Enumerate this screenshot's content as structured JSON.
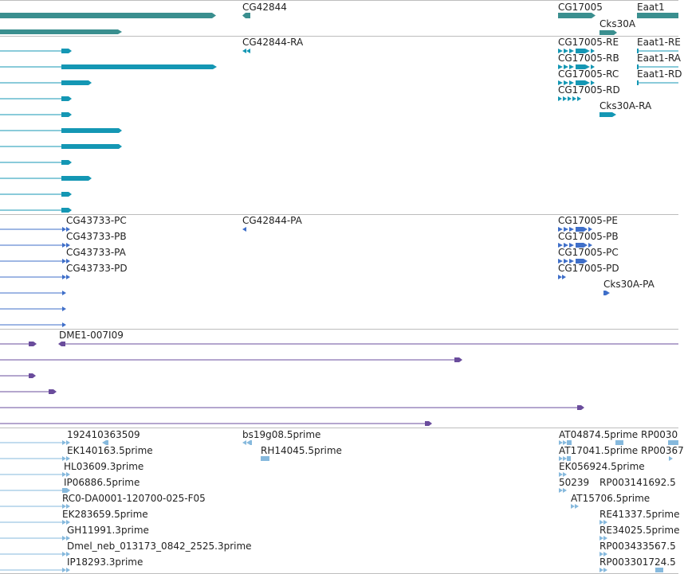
{
  "colors": {
    "gene": "#3a8f8f",
    "mrna": "#1497b4",
    "cds": "#3f6fc9",
    "clone": "#6a4c9c",
    "est": "#86b9dd",
    "separator": "#bdbdbd",
    "label": "#222222"
  },
  "tracks": {
    "gene": {
      "labels": [
        "CG42844",
        "CG17005",
        "Eaat1",
        "Cks30A"
      ]
    },
    "mrna": {
      "labels": [
        "CG42844-RA",
        "CG17005-RE",
        "CG17005-RB",
        "CG17005-RC",
        "CG17005-RD",
        "Cks30A-RA",
        "Eaat1-RE",
        "Eaat1-RA",
        "Eaat1-RD"
      ]
    },
    "cds": {
      "labels": [
        "CG43733-PC",
        "CG43733-PB",
        "CG43733-PA",
        "CG43733-PD",
        "CG42844-PA",
        "CG17005-PE",
        "CG17005-PB",
        "CG17005-PC",
        "CG17005-PD",
        "Cks30A-PA"
      ]
    },
    "clone": {
      "labels": [
        "DME1-007I09"
      ]
    },
    "est": {
      "labels": [
        "192410363509",
        "EK140163.5prime",
        "HL03609.3prime",
        "IP06886.5prime",
        "RC0-DA0001-120700-025-F05",
        "EK283659.5prime",
        "GH11991.3prime",
        "Dmel_neb_013173_0842_2525.3prime",
        "IP18293.3prime",
        "bs19g08.5prime",
        "RH14045.5prime",
        "AT04874.5prime",
        "AT17041.5prime",
        "EK056924.5prime",
        "50239",
        "AT15706.5prime",
        "RP0030",
        "RP00367",
        "RP003141692.5",
        "RE41337.5prime",
        "RE34025.5prime",
        "RP003433567.5",
        "RP003301724.5"
      ]
    }
  }
}
